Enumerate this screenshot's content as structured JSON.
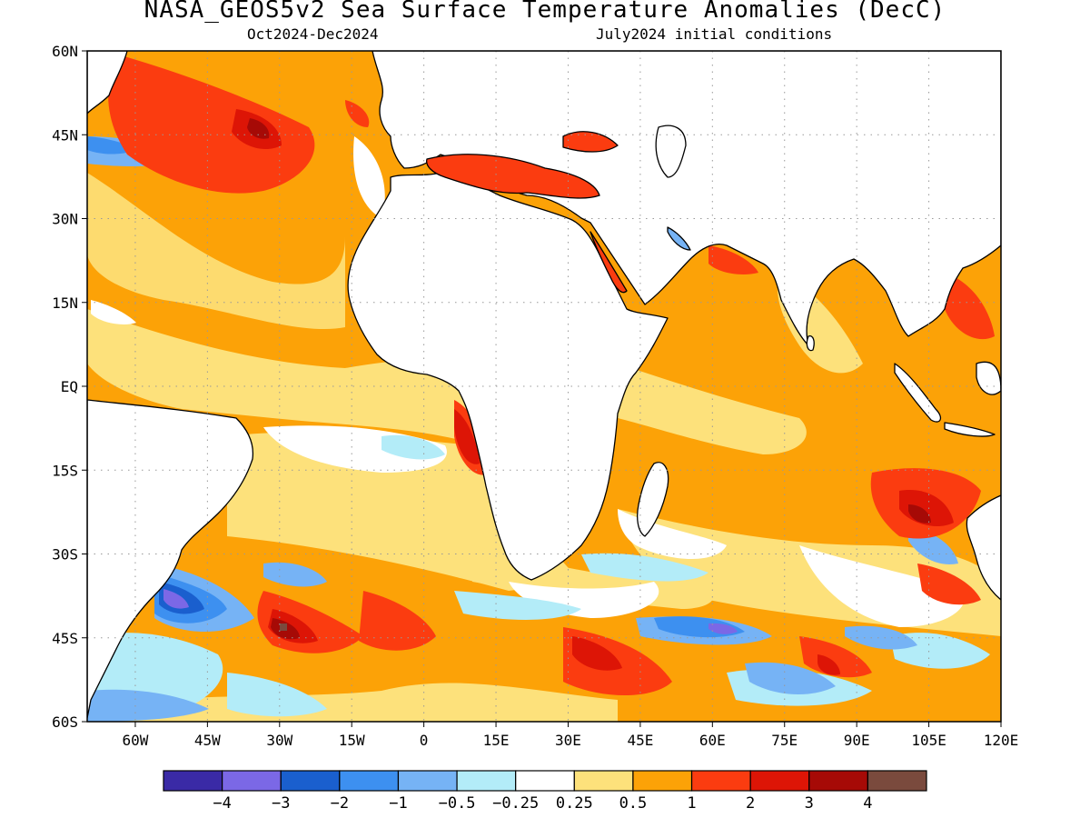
{
  "header": {
    "title": "NASA_GEOS5v2 Sea Surface Temperature Anomalies (DecC)",
    "period": "Oct2024-Dec2024",
    "initial_conditions": "July2024 initial conditions"
  },
  "map": {
    "lon_range": [
      -70,
      120
    ],
    "lat_range": [
      -60,
      60
    ],
    "lat_ticks": [
      {
        "value": 60,
        "label": "60N"
      },
      {
        "value": 45,
        "label": "45N"
      },
      {
        "value": 30,
        "label": "30N"
      },
      {
        "value": 15,
        "label": "15N"
      },
      {
        "value": 0,
        "label": "EQ"
      },
      {
        "value": -15,
        "label": "15S"
      },
      {
        "value": -30,
        "label": "30S"
      },
      {
        "value": -45,
        "label": "45S"
      },
      {
        "value": -60,
        "label": "60S"
      }
    ],
    "lon_ticks": [
      {
        "value": -60,
        "label": "60W"
      },
      {
        "value": -45,
        "label": "45W"
      },
      {
        "value": -30,
        "label": "30W"
      },
      {
        "value": -15,
        "label": "15W"
      },
      {
        "value": 0,
        "label": "0"
      },
      {
        "value": 15,
        "label": "15E"
      },
      {
        "value": 30,
        "label": "30E"
      },
      {
        "value": 45,
        "label": "45E"
      },
      {
        "value": 60,
        "label": "60E"
      },
      {
        "value": 75,
        "label": "75E"
      },
      {
        "value": 90,
        "label": "90E"
      },
      {
        "value": 105,
        "label": "105E"
      },
      {
        "value": 120,
        "label": "120E"
      }
    ],
    "grid": "dotted"
  },
  "colorbar": {
    "colors": [
      "#3a2aa6",
      "#7b68e6",
      "#1a5fce",
      "#3d90f0",
      "#76b3f5",
      "#b3ecf8",
      "#ffffff",
      "#fde17b",
      "#fca207",
      "#fb3c10",
      "#dd1506",
      "#a60a06",
      "#7a4a3d"
    ],
    "labels": [
      "−4",
      "−3",
      "−2",
      "−1",
      "−0.5",
      "−0.25",
      "0.25",
      "0.5",
      "1",
      "2",
      "3",
      "4"
    ]
  }
}
